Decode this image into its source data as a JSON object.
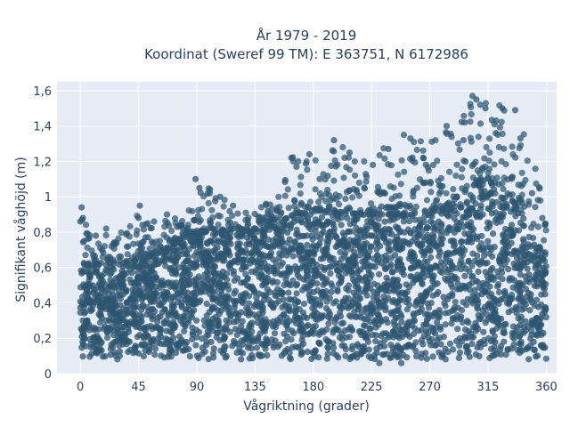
{
  "chart_data": {
    "type": "scatter",
    "title_line1": "År 1979 - 2019",
    "title_line2": "Koordinat (Sweref 99 TM): E 363751, N 6172986",
    "xlabel": "Vågriktning (grader)",
    "ylabel": "Signifikant våghöjd (m)",
    "xlim": [
      -18,
      368
    ],
    "ylim": [
      0,
      1.65
    ],
    "x_ticks": [
      0,
      45,
      90,
      135,
      180,
      225,
      270,
      315,
      360
    ],
    "x_tick_labels": [
      "0",
      "45",
      "90",
      "135",
      "180",
      "225",
      "270",
      "315",
      "360"
    ],
    "y_ticks": [
      0,
      0.2,
      0.4,
      0.6,
      0.8,
      1.0,
      1.2,
      1.4,
      1.6
    ],
    "y_tick_labels": [
      "0",
      "0,2",
      "0,4",
      "0,6",
      "0,8",
      "1",
      "1,2",
      "1,4",
      "1,6"
    ],
    "marker_color": "#2f5670",
    "plot_bg": "#e5ecf6",
    "grid": true,
    "envelope": {
      "direction_deg": [
        0,
        15,
        30,
        45,
        60,
        75,
        90,
        105,
        120,
        135,
        150,
        165,
        180,
        195,
        210,
        225,
        240,
        255,
        270,
        285,
        300,
        315,
        330,
        345,
        360
      ],
      "bulk_upper_m": [
        0.6,
        0.62,
        0.62,
        0.64,
        0.68,
        0.74,
        0.8,
        0.8,
        0.82,
        0.8,
        0.86,
        0.9,
        0.92,
        0.92,
        0.9,
        0.9,
        0.9,
        0.9,
        0.92,
        0.96,
        1.05,
        1.1,
        1.02,
        0.85,
        0.62
      ],
      "bulk_lower_m": [
        0.1,
        0.1,
        0.1,
        0.1,
        0.1,
        0.1,
        0.1,
        0.1,
        0.1,
        0.1,
        0.1,
        0.1,
        0.1,
        0.1,
        0.1,
        0.1,
        0.1,
        0.1,
        0.1,
        0.1,
        0.1,
        0.1,
        0.1,
        0.1,
        0.1
      ],
      "max_m": [
        0.94,
        0.8,
        0.78,
        0.95,
        0.85,
        0.9,
        1.1,
        1.02,
        0.95,
        0.92,
        1.02,
        1.25,
        1.24,
        1.32,
        1.25,
        1.3,
        1.27,
        1.35,
        1.33,
        1.4,
        1.57,
        1.56,
        1.5,
        1.49,
        0.88
      ]
    },
    "outliers": [
      {
        "x": 1,
        "y": 0.94
      },
      {
        "x": 2,
        "y": 0.88
      },
      {
        "x": 0,
        "y": 0.86
      },
      {
        "x": 12,
        "y": 0.78
      },
      {
        "x": 20,
        "y": 0.82
      },
      {
        "x": 28,
        "y": 0.74
      },
      {
        "x": 46,
        "y": 0.95
      },
      {
        "x": 45,
        "y": 0.88
      },
      {
        "x": 57,
        "y": 0.86
      },
      {
        "x": 67,
        "y": 0.9
      },
      {
        "x": 89,
        "y": 1.1
      },
      {
        "x": 92,
        "y": 1.05
      },
      {
        "x": 100,
        "y": 1.02
      },
      {
        "x": 108,
        "y": 1.0
      },
      {
        "x": 118,
        "y": 0.95
      },
      {
        "x": 145,
        "y": 0.92
      },
      {
        "x": 163,
        "y": 1.22
      },
      {
        "x": 167,
        "y": 1.17
      },
      {
        "x": 177,
        "y": 1.24
      },
      {
        "x": 185,
        "y": 1.1
      },
      {
        "x": 196,
        "y": 1.32
      },
      {
        "x": 208,
        "y": 1.25
      },
      {
        "x": 212,
        "y": 1.2
      },
      {
        "x": 226,
        "y": 1.18
      },
      {
        "x": 238,
        "y": 1.27
      },
      {
        "x": 250,
        "y": 1.35
      },
      {
        "x": 255,
        "y": 1.33
      },
      {
        "x": 265,
        "y": 1.22
      },
      {
        "x": 283,
        "y": 1.4
      },
      {
        "x": 296,
        "y": 1.32
      },
      {
        "x": 303,
        "y": 1.57
      },
      {
        "x": 306,
        "y": 1.55
      },
      {
        "x": 309,
        "y": 1.52
      },
      {
        "x": 313,
        "y": 1.5
      },
      {
        "x": 321,
        "y": 1.36
      },
      {
        "x": 326,
        "y": 1.5
      },
      {
        "x": 336,
        "y": 1.49
      },
      {
        "x": 340,
        "y": 1.33
      },
      {
        "x": 349,
        "y": 1.02
      },
      {
        "x": 357,
        "y": 0.88
      },
      {
        "x": 359,
        "y": 0.84
      },
      {
        "x": 297,
        "y": 1.42
      },
      {
        "x": 320,
        "y": 1.41
      },
      {
        "x": 231,
        "y": 0.06
      },
      {
        "x": 248,
        "y": 0.06
      }
    ]
  }
}
